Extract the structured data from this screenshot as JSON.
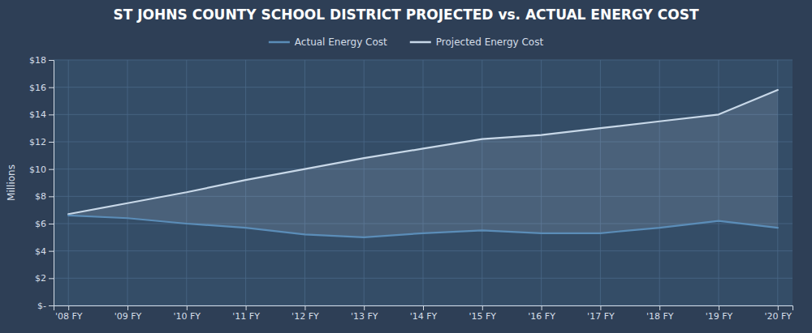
{
  "chart_data": {
    "type": "line",
    "title": "ST JOHNS COUNTY SCHOOL DISTRICT PROJECTED vs. ACTUAL ENERGY COST",
    "ylabel": "Millions",
    "categories": [
      "'08 FY",
      "'09 FY",
      "'10 FY",
      "'11 FY",
      "'12 FY",
      "'13 FY",
      "'14 FY",
      "'15 FY",
      "'16 FY",
      "'17 FY",
      "'18 FY",
      "'19 FY",
      "'20 FY"
    ],
    "series": [
      {
        "name": "Actual Energy Cost",
        "color": "#5B8DB8",
        "values": [
          6.6,
          6.4,
          6.0,
          5.7,
          5.2,
          5.0,
          5.3,
          5.5,
          5.3,
          5.3,
          5.7,
          6.2,
          5.7
        ]
      },
      {
        "name": "Projected Energy Cost",
        "color": "#C8D8E8",
        "values": [
          6.7,
          7.5,
          8.3,
          9.2,
          10.0,
          10.8,
          11.5,
          12.2,
          12.5,
          13.0,
          13.5,
          14.0,
          15.8
        ]
      }
    ],
    "ylim": [
      0,
      18
    ],
    "yticks": [
      {
        "value": 0,
        "label": "$-"
      },
      {
        "value": 2,
        "label": "$2"
      },
      {
        "value": 4,
        "label": "$4"
      },
      {
        "value": 6,
        "label": "$6"
      },
      {
        "value": 8,
        "label": "$8"
      },
      {
        "value": 10,
        "label": "$10"
      },
      {
        "value": 12,
        "label": "$12"
      },
      {
        "value": 14,
        "label": "$14"
      },
      {
        "value": 16,
        "label": "$16"
      },
      {
        "value": 18,
        "label": "$18"
      }
    ],
    "grid": true,
    "legend": "top"
  }
}
